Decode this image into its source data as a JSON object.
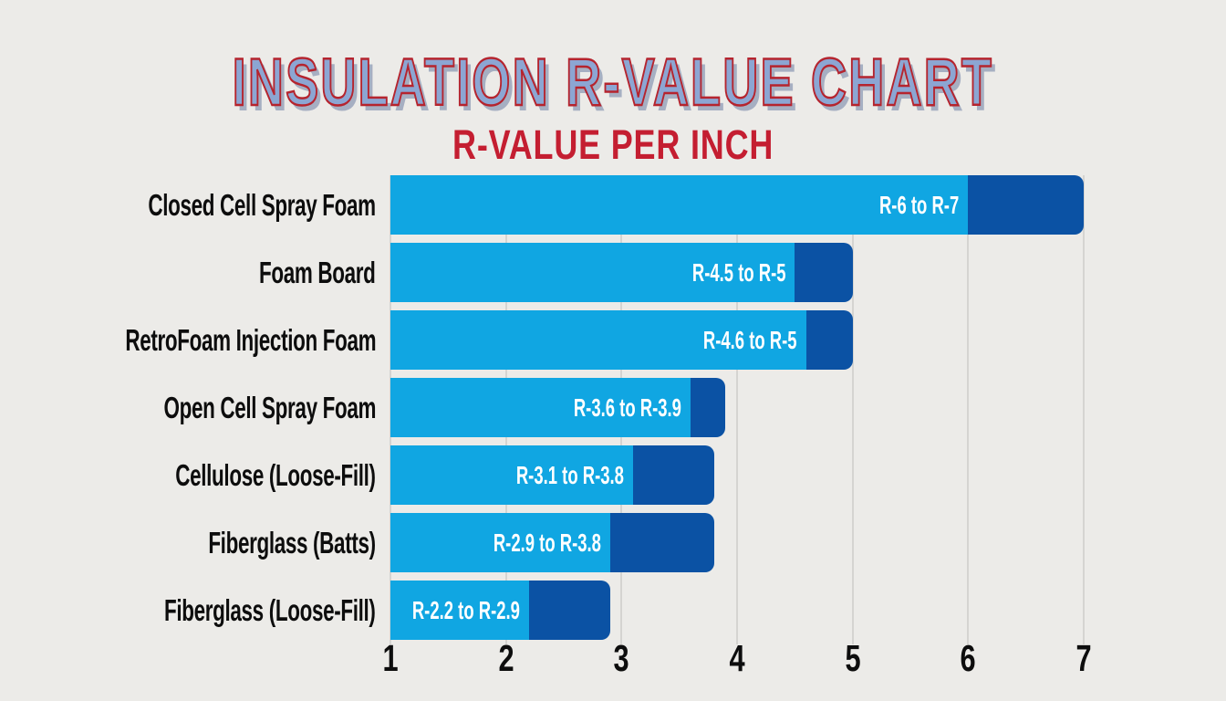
{
  "header": {
    "title": "INSULATION R-VALUE CHART",
    "subtitle": "R-VALUE PER INCH"
  },
  "chart_data": {
    "type": "bar",
    "orientation": "horizontal",
    "title": "INSULATION R-VALUE CHART",
    "subtitle": "R-VALUE PER INCH",
    "xlabel": "",
    "ylabel": "",
    "xlim": [
      1,
      7
    ],
    "x_ticks": [
      "1",
      "2",
      "3",
      "4",
      "5",
      "6",
      "7"
    ],
    "grid": true,
    "legend": false,
    "categories": [
      "Closed Cell Spray Foam",
      "Foam Board",
      "RetroFoam Injection Foam",
      "Open Cell Spray Foam",
      "Cellulose (Loose-Fill)",
      "Fiberglass (Batts)",
      "Fiberglass (Loose-Fill)"
    ],
    "series": [
      {
        "name": "R-value per inch (low)",
        "values": [
          6,
          4.5,
          4.6,
          3.6,
          3.1,
          2.9,
          2.2
        ]
      },
      {
        "name": "R-value per inch (high)",
        "values": [
          7,
          5,
          5,
          3.9,
          3.8,
          3.8,
          2.9
        ]
      }
    ],
    "bar_labels": [
      "R-6 to R-7",
      "R-4.5 to R-5",
      "R-4.6 to R-5",
      "R-3.6 to R-3.9",
      "R-3.1 to R-3.8",
      "R-2.9 to R-3.8",
      "R-2.2 to R-2.9"
    ],
    "colors": {
      "low_segment": "#10A6E2",
      "high_segment": "#0B52A4",
      "background": "#ECEBE8",
      "gridline": "#D5D4D1",
      "category_text": "#0D0D0D",
      "value_text": "#FFFFFF",
      "title_fill": "#8CA6D3",
      "title_outline": "#B5242E",
      "title_shadow": "#A6AFC2",
      "subtitle_text": "#C41E31"
    }
  }
}
